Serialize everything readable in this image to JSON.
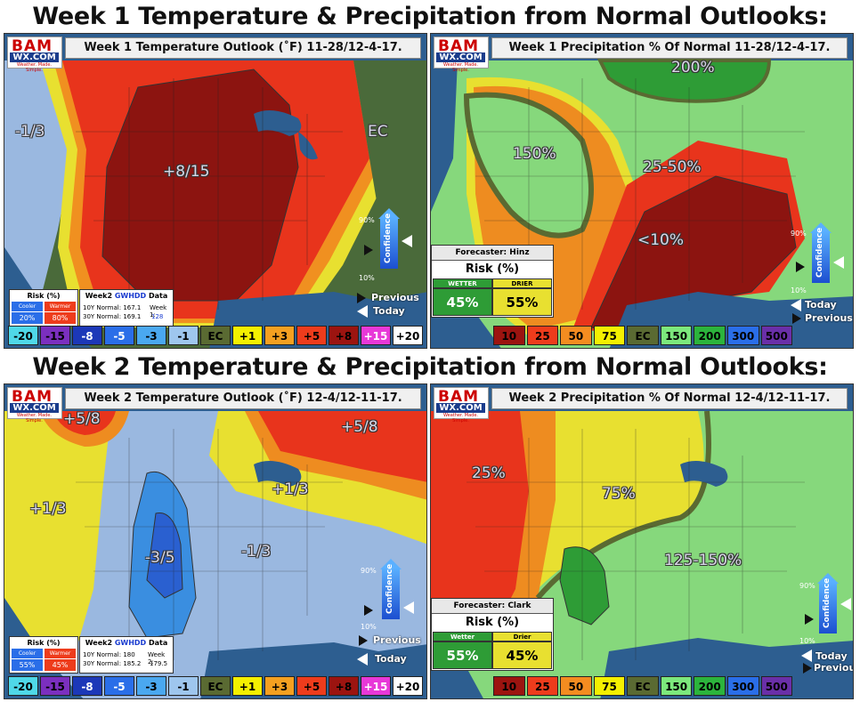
{
  "titles": {
    "week1": "Week 1 Temperature & Precipitation from Normal Outlooks:",
    "week2": "Week 2 Temperature & Precipitation from Normal Outlooks:"
  },
  "logo": {
    "bam": "BAM",
    "wx": "WX.COM",
    "tagline": "Weather. Made. Simple."
  },
  "panels": {
    "w1_temp": {
      "title": "Week 1 Temperature Outlook (˚F) 11-28/12-4-17.",
      "labels": [
        "-1/3",
        "+8/15",
        "EC"
      ],
      "risk": {
        "title": "Risk (%)",
        "cooler": "Cooler",
        "warmer": "Warmer",
        "cooler_val": "20%",
        "warmer_val": "80%"
      },
      "gwhdd": {
        "title_a": "Week2 ",
        "title_b": "GWHDD",
        "title_c": " Data",
        "ten_y": "10Y Normal: 167.1",
        "thirty_y": "30Y Normal: 169.1",
        "week_label": "Week 1:",
        "week_val": "128"
      },
      "confidence": {
        "label": "Confidence",
        "high": "90%",
        "low": "10%"
      },
      "previous": "Previous",
      "today": "Today"
    },
    "w1_precip": {
      "title": "Week 1 Precipitation % Of Normal 11-28/12-4-17.",
      "labels": [
        "200%",
        "150%",
        "25-50%",
        "<10%"
      ],
      "forecaster": "Forecaster: Hinz",
      "risk_title": "Risk (%)",
      "wetter": "WETTER",
      "drier": "DRIER",
      "wetter_val": "45%",
      "drier_val": "55%",
      "confidence": {
        "label": "Confidence",
        "high": "90%",
        "low": "10%"
      },
      "today": "Today",
      "previous": "Previous"
    },
    "w2_temp": {
      "title": "Week 2 Temperature Outlook (˚F) 12-4/12-11-17.",
      "labels": [
        "+5/8",
        "+5/8",
        "+1/3",
        "+1/3",
        "-3/5",
        "-1/3"
      ],
      "risk": {
        "title": "Risk (%)",
        "cooler": "Cooler",
        "warmer": "Warmer",
        "cooler_val": "55%",
        "warmer_val": "45%"
      },
      "gwhdd": {
        "title_a": "Week2 ",
        "title_b": "GWHDD",
        "title_c": " Data",
        "ten_y": "10Y Normal: 180",
        "thirty_y": "30Y Normal: 185.2",
        "week_label": "Week 2:",
        "week_val": "179.5"
      },
      "confidence": {
        "label": "Confidence",
        "high": "90%",
        "low": "10%"
      },
      "previous": "Previous",
      "today": "Today"
    },
    "w2_precip": {
      "title": "Week 2 Precipitation % Of Normal 12-4/12-11-17.",
      "labels": [
        "25%",
        "75%",
        "125-150%"
      ],
      "forecaster": "Forecaster: Clark",
      "risk_title": "Risk (%)",
      "wetter": "Wetter",
      "drier": "Drier",
      "wetter_val": "55%",
      "drier_val": "45%",
      "confidence": {
        "label": "Confidence",
        "high": "90%",
        "low": "10%"
      },
      "today": "Today",
      "previous": "Previous"
    }
  },
  "temp_scale": [
    {
      "label": "-20",
      "bg": "#4fd8e8",
      "fg": "#000"
    },
    {
      "label": "-15",
      "bg": "#7b2fbf",
      "fg": "#000"
    },
    {
      "label": "-8",
      "bg": "#1c38b8",
      "fg": "#fff"
    },
    {
      "label": "-5",
      "bg": "#2a6ee8",
      "fg": "#fff"
    },
    {
      "label": "-3",
      "bg": "#4aa8f0",
      "fg": "#000"
    },
    {
      "label": "-1",
      "bg": "#9ec6ee",
      "fg": "#000"
    },
    {
      "label": "EC",
      "bg": "#5a6a32",
      "fg": "#000"
    },
    {
      "label": "+1",
      "bg": "#f4f000",
      "fg": "#000"
    },
    {
      "label": "+3",
      "bg": "#f4a020",
      "fg": "#000"
    },
    {
      "label": "+5",
      "bg": "#ee3c1c",
      "fg": "#000"
    },
    {
      "label": "+8",
      "bg": "#9c1410",
      "fg": "#000"
    },
    {
      "label": "+15",
      "bg": "#e838d8",
      "fg": "#fff"
    },
    {
      "label": "+20",
      "bg": "#ffffff",
      "fg": "#000"
    }
  ],
  "precip_scale": [
    {
      "label": "10",
      "bg": "#9c1410",
      "fg": "#000"
    },
    {
      "label": "25",
      "bg": "#ee3c1c",
      "fg": "#000"
    },
    {
      "label": "50",
      "bg": "#f48c20",
      "fg": "#000"
    },
    {
      "label": "75",
      "bg": "#f4f000",
      "fg": "#000"
    },
    {
      "label": "EC",
      "bg": "#5a6a32",
      "fg": "#000"
    },
    {
      "label": "150",
      "bg": "#7ce87c",
      "fg": "#000"
    },
    {
      "label": "200",
      "bg": "#2cb43c",
      "fg": "#000"
    },
    {
      "label": "300",
      "bg": "#2a6ee8",
      "fg": "#000"
    },
    {
      "label": "500",
      "bg": "#6a2fa8",
      "fg": "#000"
    }
  ],
  "colors": {
    "temp_red": "#e8341c",
    "temp_dark_red": "#8c1410",
    "temp_orange": "#f09020",
    "temp_yellow": "#e8e030",
    "temp_lightblue": "#9ab8e0",
    "temp_blue": "#3a8ee0",
    "temp_deepblue": "#2a60d0",
    "precip_green": "#86d87c",
    "precip_darkgreen": "#2e9c36",
    "precip_yellow": "#e8e030",
    "precip_orange": "#ee8c20",
    "precip_red": "#e8341c",
    "precip_darkred": "#8c1410"
  }
}
